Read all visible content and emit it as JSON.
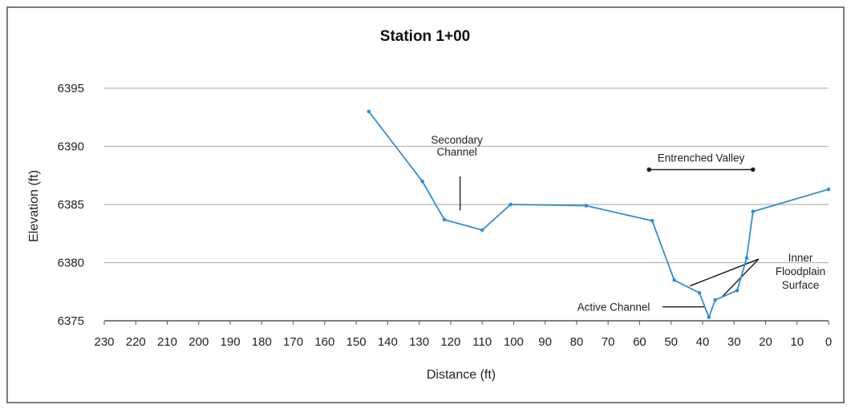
{
  "chart_data": {
    "type": "line",
    "title": "Station 1+00",
    "xlabel": "Distance (ft)",
    "ylabel": "Elevation (ft)",
    "xlim": [
      230,
      0
    ],
    "x_reversed": true,
    "ylim": [
      6375,
      6395
    ],
    "x_ticks": [
      230,
      220,
      210,
      200,
      190,
      180,
      170,
      160,
      150,
      140,
      130,
      120,
      110,
      100,
      90,
      80,
      70,
      60,
      50,
      40,
      30,
      20,
      10,
      0
    ],
    "y_ticks": [
      6375,
      6380,
      6385,
      6390,
      6395
    ],
    "grid": "horizontal",
    "series_color": "#2b8fd6",
    "series": [
      {
        "x": [
          146,
          129,
          122,
          110,
          101,
          77,
          56,
          49,
          41,
          38,
          36,
          29,
          26,
          24,
          0
        ],
        "y": [
          6393.0,
          6387.0,
          6383.7,
          6382.8,
          6385.0,
          6384.9,
          6383.6,
          6378.5,
          6377.4,
          6375.3,
          6376.8,
          6377.6,
          6380.4,
          6384.4,
          6386.3
        ]
      }
    ],
    "annotations": {
      "secondary_channel": {
        "lines": [
          "Secondary",
          "Channel"
        ],
        "x": 117,
        "y": 6384.5
      },
      "entrenched_valley": {
        "text": "Entrenched Valley",
        "x_start": 57,
        "x_end": 24,
        "y": 6388
      },
      "inner_floodplain": {
        "lines": [
          "Inner",
          "Floodplain",
          "Surface"
        ],
        "targets": [
          [
            44,
            6378.0
          ],
          [
            34,
            6377.0
          ]
        ]
      },
      "active_channel": {
        "text": "Active Channel",
        "x": 38,
        "y": 6376.2
      }
    }
  }
}
